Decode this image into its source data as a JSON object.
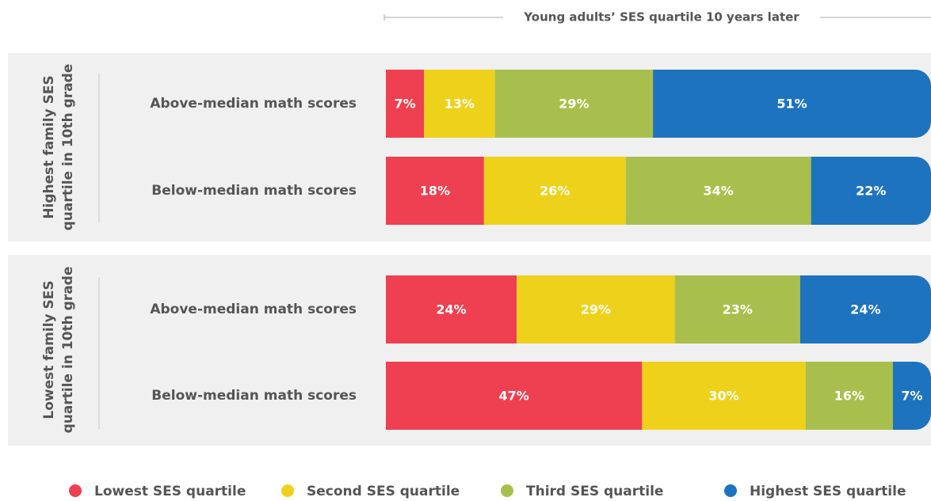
{
  "chart_data": {
    "type": "stacked-bar",
    "x_label": "Young adults’ SES quartile 10 years later",
    "group_labels": [
      [
        "Highest family SES",
        "quartile in 10th grade"
      ],
      [
        "Lowest family SES",
        "quartile in 10th grade"
      ]
    ],
    "categories": [
      "Above-median math scores",
      "Below-median math scores",
      "Above-median math scores",
      "Below-median math scores"
    ],
    "xlim": [
      0,
      100
    ],
    "series": [
      {
        "name": "Lowest SES quartile",
        "color": "#ee4050",
        "values": [
          7,
          18,
          24,
          47
        ],
        "value_labels": [
          "7%",
          "18%",
          "24%",
          "47%"
        ]
      },
      {
        "name": "Second SES quartile",
        "color": "#eed11a",
        "values": [
          13,
          26,
          29,
          30
        ],
        "value_labels": [
          "13%",
          "26%",
          "29%",
          "30%"
        ]
      },
      {
        "name": "Third SES quartile",
        "color": "#a9bf4d",
        "values": [
          29,
          34,
          23,
          16
        ],
        "value_labels": [
          "29%",
          "34%",
          "23%",
          "16%"
        ]
      },
      {
        "name": "Highest SES quartile",
        "color": "#1e73be",
        "values": [
          51,
          22,
          24,
          7
        ],
        "value_labels": [
          "51%",
          "22%",
          "24%",
          "7%"
        ]
      }
    ]
  }
}
